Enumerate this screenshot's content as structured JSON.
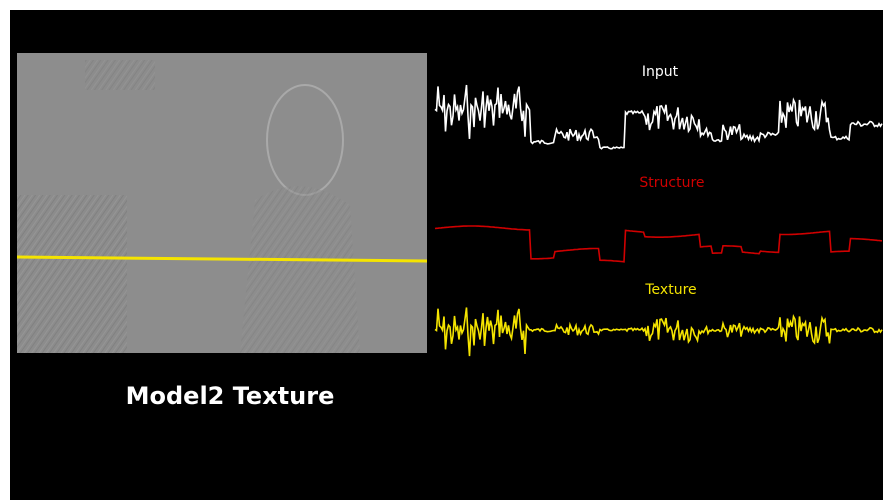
{
  "panel_labels": {
    "input": "Input",
    "structure": "Structure",
    "texture": "Texture"
  },
  "caption": "Model2 Texture"
}
